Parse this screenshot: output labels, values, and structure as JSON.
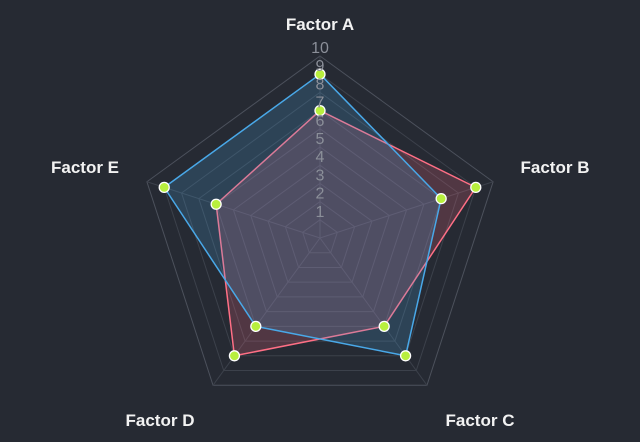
{
  "chart_data": {
    "type": "radar",
    "axes": [
      "Factor A",
      "Factor B",
      "Factor C",
      "Factor D",
      "Factor E"
    ],
    "r_range": [
      0,
      10
    ],
    "ticks": [
      "1",
      "2",
      "3",
      "4",
      "5",
      "6",
      "7",
      "8",
      "9",
      "10"
    ],
    "grid": true,
    "legend": "none",
    "series": [
      {
        "color": "#ff6f85",
        "values": [
          7,
          9,
          6,
          8,
          6
        ]
      },
      {
        "color": "#49a8e8",
        "values": [
          9,
          7,
          8,
          6,
          9
        ]
      }
    ],
    "marker_color": "#b8ef3e"
  }
}
